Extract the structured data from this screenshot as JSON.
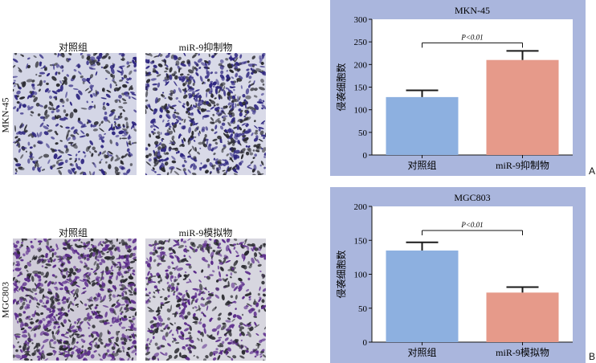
{
  "left_figure": {
    "row1": {
      "label": "MKN-45",
      "col1": "对照组",
      "col2": "miR-9抑制物"
    },
    "row2": {
      "label": "MGC803",
      "col1": "对照组",
      "col2": "miR-9模拟物"
    }
  },
  "colors": {
    "panel_bg": "#aab6dd",
    "control_bar": "#8db0e0",
    "treatment_bar": "#e69a8a",
    "error_bar": "#1a1a1a",
    "stain_row1": "#2e2680",
    "stain_row2": "#5a2a8a"
  },
  "chart_data": [
    {
      "panel": "A",
      "type": "bar",
      "title": "MKN-45",
      "ylabel": "侵袭细胞数",
      "xlabel": "",
      "categories": [
        "对照组",
        "miR-9抑制物"
      ],
      "values": [
        128,
        210
      ],
      "errors": [
        15,
        20
      ],
      "ylim": [
        0,
        300
      ],
      "yticks": [
        0,
        50,
        100,
        150,
        200,
        250,
        300
      ],
      "annotation": "P<0.01",
      "grid": false
    },
    {
      "panel": "B",
      "type": "bar",
      "title": "MGC803",
      "ylabel": "侵袭细胞数",
      "xlabel": "",
      "categories": [
        "对照组",
        "miR-9模拟物"
      ],
      "values": [
        135,
        73
      ],
      "errors": [
        12,
        8
      ],
      "ylim": [
        0,
        200
      ],
      "yticks": [
        0,
        50,
        100,
        150,
        200
      ],
      "annotation": "P<0.01",
      "grid": false
    }
  ]
}
